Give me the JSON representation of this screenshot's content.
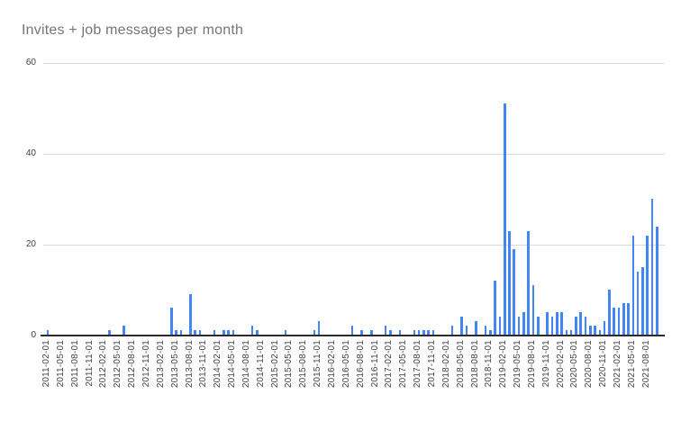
{
  "title": "Invites + job messages per month",
  "chart_data": {
    "type": "bar",
    "title": "Invites + job messages per month",
    "xlabel": "",
    "ylabel": "",
    "ylim": [
      0,
      60
    ],
    "yticks": [
      0,
      20,
      40,
      60
    ],
    "grid": true,
    "legend_position": "none",
    "x_tick_every": 3,
    "bar_color": "#4285f4",
    "title_color": "#757575",
    "axis_text_color": "#424242",
    "gridline_color": "#d9d9d9",
    "background_color": "#ffffff",
    "categories": [
      "2011-02-01",
      "2011-03-01",
      "2011-04-01",
      "2011-05-01",
      "2011-06-01",
      "2011-07-01",
      "2011-08-01",
      "2011-09-01",
      "2011-10-01",
      "2011-11-01",
      "2011-12-01",
      "2012-01-01",
      "2012-02-01",
      "2012-03-01",
      "2012-04-01",
      "2012-05-01",
      "2012-06-01",
      "2012-07-01",
      "2012-08-01",
      "2012-09-01",
      "2012-10-01",
      "2012-11-01",
      "2012-12-01",
      "2013-01-01",
      "2013-02-01",
      "2013-03-01",
      "2013-04-01",
      "2013-05-01",
      "2013-06-01",
      "2013-07-01",
      "2013-08-01",
      "2013-09-01",
      "2013-10-01",
      "2013-11-01",
      "2013-12-01",
      "2014-01-01",
      "2014-02-01",
      "2014-03-01",
      "2014-04-01",
      "2014-05-01",
      "2014-06-01",
      "2014-07-01",
      "2014-08-01",
      "2014-09-01",
      "2014-10-01",
      "2014-11-01",
      "2014-12-01",
      "2015-01-01",
      "2015-02-01",
      "2015-03-01",
      "2015-04-01",
      "2015-05-01",
      "2015-06-01",
      "2015-07-01",
      "2015-08-01",
      "2015-09-01",
      "2015-10-01",
      "2015-11-01",
      "2015-12-01",
      "2016-01-01",
      "2016-02-01",
      "2016-03-01",
      "2016-04-01",
      "2016-05-01",
      "2016-06-01",
      "2016-07-01",
      "2016-08-01",
      "2016-09-01",
      "2016-10-01",
      "2016-11-01",
      "2016-12-01",
      "2017-01-01",
      "2017-02-01",
      "2017-03-01",
      "2017-04-01",
      "2017-05-01",
      "2017-06-01",
      "2017-07-01",
      "2017-08-01",
      "2017-09-01",
      "2017-10-01",
      "2017-11-01",
      "2017-12-01",
      "2018-01-01",
      "2018-02-01",
      "2018-03-01",
      "2018-04-01",
      "2018-05-01",
      "2018-06-01",
      "2018-07-01",
      "2018-08-01",
      "2018-09-01",
      "2018-10-01",
      "2018-11-01",
      "2018-12-01",
      "2019-01-01",
      "2019-02-01",
      "2019-03-01",
      "2019-04-01",
      "2019-05-01",
      "2019-06-01",
      "2019-07-01",
      "2019-08-01",
      "2019-09-01",
      "2019-10-01",
      "2019-11-01",
      "2019-12-01",
      "2020-01-01",
      "2020-02-01",
      "2020-03-01",
      "2020-04-01",
      "2020-05-01",
      "2020-06-01",
      "2020-07-01",
      "2020-08-01",
      "2020-09-01",
      "2020-10-01",
      "2020-11-01",
      "2020-12-01",
      "2021-01-01",
      "2021-02-01",
      "2021-03-01",
      "2021-04-01",
      "2021-05-01",
      "2021-06-01",
      "2021-07-01",
      "2021-08-01",
      "2021-09-01",
      "2021-10-01"
    ],
    "values": [
      1,
      0,
      0,
      0,
      0,
      0,
      0,
      0,
      0,
      0,
      0,
      0,
      0,
      1,
      0,
      0,
      2,
      0,
      0,
      0,
      0,
      0,
      0,
      0,
      0,
      0,
      6,
      1,
      1,
      0,
      9,
      1,
      1,
      0,
      0,
      1,
      0,
      1,
      1,
      1,
      0,
      0,
      0,
      2,
      1,
      0,
      0,
      0,
      0,
      0,
      1,
      0,
      0,
      0,
      0,
      0,
      1,
      3,
      0,
      0,
      0,
      0,
      0,
      0,
      2,
      0,
      1,
      0,
      1,
      0,
      0,
      2,
      1,
      0,
      1,
      0,
      0,
      1,
      1,
      1,
      1,
      1,
      0,
      0,
      0,
      2,
      0,
      4,
      2,
      0,
      3,
      0,
      2,
      1,
      12,
      4,
      51,
      23,
      19,
      4,
      5,
      23,
      11,
      4,
      0,
      5,
      4,
      5,
      5,
      1,
      1,
      4,
      5,
      4,
      2,
      2,
      1,
      3,
      10,
      6,
      6,
      7,
      7,
      22,
      14,
      15,
      22,
      30,
      24
    ]
  }
}
